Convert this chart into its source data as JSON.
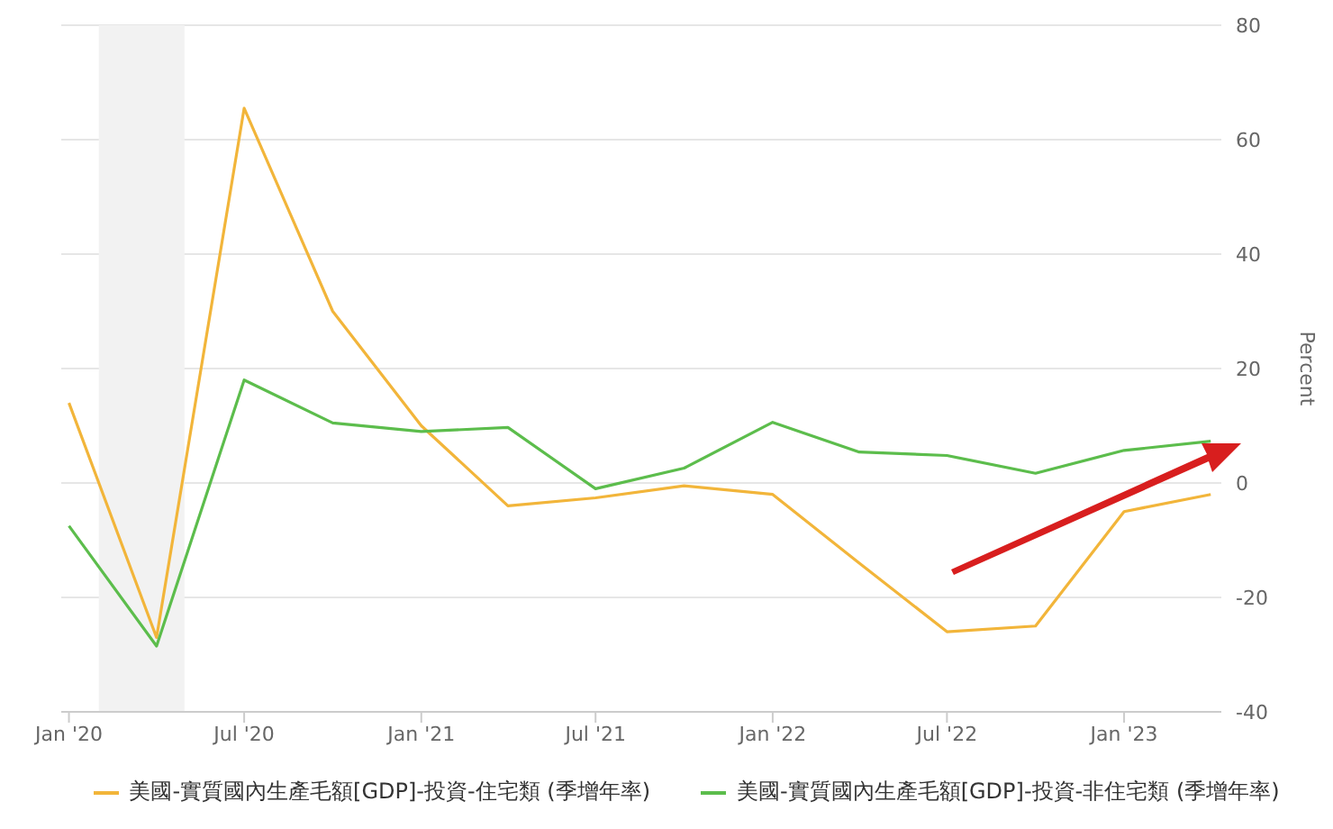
{
  "chart_data": {
    "type": "line",
    "x": [
      "2020-01",
      "2020-04",
      "2020-07",
      "2020-10",
      "2021-01",
      "2021-04",
      "2021-07",
      "2021-10",
      "2022-01",
      "2022-04",
      "2022-07",
      "2022-10",
      "2023-01",
      "2023-04"
    ],
    "series": [
      {
        "name": "美國-實質國內生產毛額[GDP]-投資-住宅類 (季增年率)",
        "color": "#f2b53a",
        "values": [
          14,
          -27,
          65.5,
          30,
          10,
          -4,
          -2.6,
          -0.5,
          -2,
          -14,
          -26,
          -25,
          -5,
          -2
        ]
      },
      {
        "name": "美國-實質國內生產毛額[GDP]-投資-非住宅類 (季增年率)",
        "color": "#5cbd4c",
        "values": [
          -7.5,
          -28.5,
          18,
          10.5,
          9,
          9.7,
          -1,
          2.6,
          10.6,
          5.4,
          4.8,
          1.7,
          5.7,
          7.3
        ]
      }
    ],
    "ylabel": "Percent",
    "xlim": [
      "2019-12-24",
      "2023-04-12"
    ],
    "xticks": [
      {
        "value": "2020-01",
        "label": "Jan '20"
      },
      {
        "value": "2020-07",
        "label": "Jul '20"
      },
      {
        "value": "2021-01",
        "label": "Jan '21"
      },
      {
        "value": "2021-07",
        "label": "Jul '21"
      },
      {
        "value": "2022-01",
        "label": "Jan '22"
      },
      {
        "value": "2022-07",
        "label": "Jul '22"
      },
      {
        "value": "2023-01",
        "label": "Jan '23"
      }
    ],
    "ylim": [
      -40,
      80
    ],
    "yticks": [
      -40,
      -20,
      0,
      20,
      40,
      60,
      80
    ],
    "bands": [
      {
        "axis": "x",
        "from": "2020-02-01",
        "to": "2020-04-30",
        "color": "#f2f2f2"
      }
    ],
    "grid": "y",
    "legend": "bottom",
    "marker": "none",
    "line_style": "solid"
  }
}
